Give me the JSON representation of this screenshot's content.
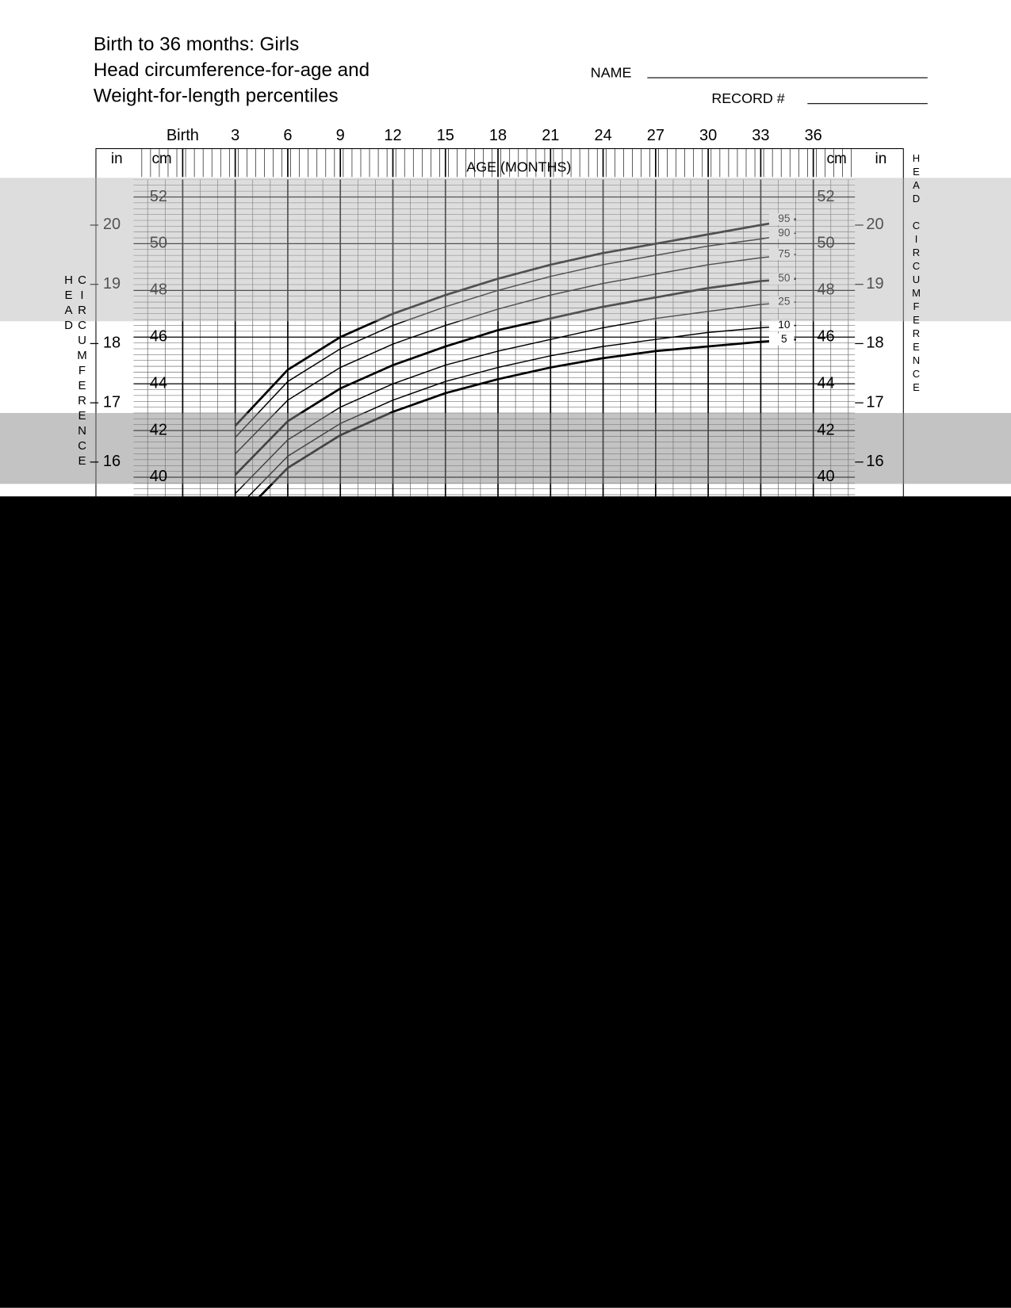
{
  "header": {
    "title_lines": [
      "Birth to 36 months: Girls",
      "Head circumference-for-age and",
      "Weight-for-length percentiles"
    ],
    "name_label": "NAME",
    "record_label": "RECORD #"
  },
  "chart_data": {
    "type": "line",
    "x_label": "AGE (MONTHS)",
    "y_label": "HEAD CIRCUMFERENCE",
    "y_unit": "cm",
    "y2_unit": "in",
    "x": [
      3,
      6,
      9,
      12,
      15,
      18,
      21,
      24,
      27,
      30,
      33,
      35
    ],
    "xlim": [
      0,
      36
    ],
    "xticks": [
      {
        "value": 0,
        "label": "Birth"
      },
      3,
      6,
      9,
      12,
      15,
      18,
      21,
      24,
      27,
      30,
      33,
      36
    ],
    "ylim": [
      39,
      52.75
    ],
    "yticks": [
      40,
      42,
      44,
      46,
      48,
      50,
      52
    ],
    "y2lim": [
      15.35,
      20.77
    ],
    "y2ticks": [
      16,
      17,
      18,
      19,
      20
    ],
    "grid": true,
    "series": [
      {
        "name": "95",
        "color": "#000000",
        "bold": true,
        "values": [
          42.2,
          44.6,
          46.0,
          47.0,
          47.8,
          48.5,
          49.1,
          49.6,
          50.0,
          50.4,
          50.8,
          51.05
        ]
      },
      {
        "name": "90",
        "color": "#000000",
        "bold": false,
        "values": [
          41.7,
          44.1,
          45.5,
          46.5,
          47.3,
          48.0,
          48.6,
          49.1,
          49.5,
          49.9,
          50.2,
          50.45
        ]
      },
      {
        "name": "75",
        "color": "#000000",
        "bold": false,
        "values": [
          41.0,
          43.3,
          44.7,
          45.7,
          46.5,
          47.2,
          47.8,
          48.3,
          48.7,
          49.1,
          49.4,
          49.55
        ]
      },
      {
        "name": "50",
        "color": "#000000",
        "bold": true,
        "values": [
          40.1,
          42.4,
          43.8,
          44.8,
          45.6,
          46.3,
          46.8,
          47.3,
          47.7,
          48.1,
          48.4,
          48.5
        ]
      },
      {
        "name": "25",
        "color": "#000000",
        "bold": false,
        "values": [
          39.3,
          41.6,
          43.0,
          44.0,
          44.8,
          45.4,
          45.9,
          46.4,
          46.8,
          47.1,
          47.4,
          47.5
        ]
      },
      {
        "name": "10",
        "color": "#000000",
        "bold": false,
        "values": [
          38.6,
          40.9,
          42.3,
          43.3,
          44.1,
          44.7,
          45.2,
          45.6,
          45.9,
          46.2,
          46.4,
          46.5
        ]
      },
      {
        "name": "5",
        "color": "#000000",
        "bold": true,
        "values": [
          38.1,
          40.4,
          41.8,
          42.8,
          43.6,
          44.2,
          44.7,
          45.1,
          45.4,
          45.6,
          45.8,
          45.9
        ]
      }
    ]
  }
}
